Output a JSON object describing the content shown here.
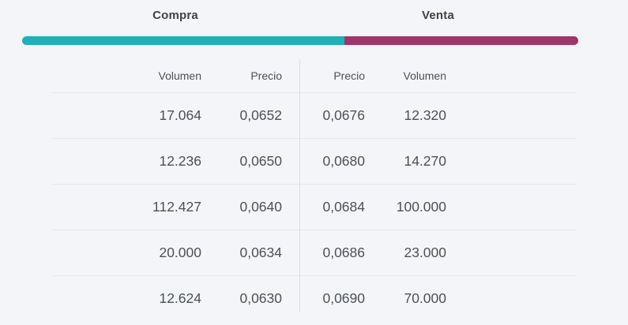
{
  "header": {
    "compra_label": "Compra",
    "venta_label": "Venta"
  },
  "depth_bar": {
    "compra_percent": 58,
    "venta_percent": 42,
    "compra_color": "#1fb1ba",
    "venta_color": "#9e356b"
  },
  "table": {
    "compra_headers": {
      "volumen": "Volumen",
      "precio": "Precio"
    },
    "venta_headers": {
      "precio": "Precio",
      "volumen": "Volumen"
    },
    "rows": [
      {
        "compra_volumen": "17.064",
        "compra_precio": "0,0652",
        "venta_precio": "0,0676",
        "venta_volumen": "12.320"
      },
      {
        "compra_volumen": "12.236",
        "compra_precio": "0,0650",
        "venta_precio": "0,0680",
        "venta_volumen": "14.270"
      },
      {
        "compra_volumen": "112.427",
        "compra_precio": "0,0640",
        "venta_precio": "0,0684",
        "venta_volumen": "100.000"
      },
      {
        "compra_volumen": "20.000",
        "compra_precio": "0,0634",
        "venta_precio": "0,0686",
        "venta_volumen": "23.000"
      },
      {
        "compra_volumen": "12.624",
        "compra_precio": "0,0630",
        "venta_precio": "0,0690",
        "venta_volumen": "70.000"
      }
    ]
  },
  "colors": {
    "background": "#f4f5f8",
    "text_primary": "#4c5157",
    "separator": "#e6e8ec"
  }
}
